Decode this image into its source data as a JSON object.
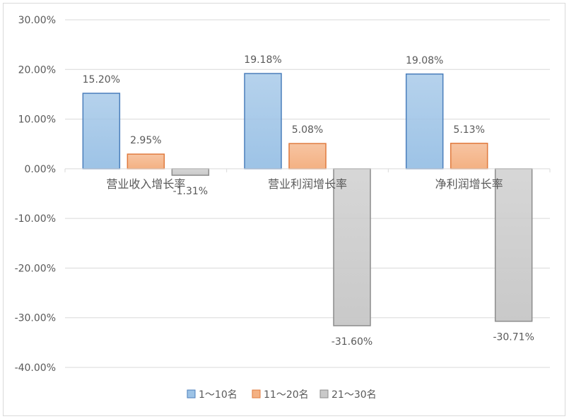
{
  "chart_data": {
    "type": "bar",
    "title": "",
    "xlabel": "",
    "ylabel": "",
    "categories": [
      "营业收入增长率",
      "营业利润增长率",
      "净利润增长率"
    ],
    "series": [
      {
        "name": "1～10名",
        "values": [
          15.2,
          19.18,
          19.08
        ],
        "labels": [
          "15.20%",
          "19.18%",
          "19.08%"
        ],
        "color": "#9dc3e6",
        "border": "#4a7ebb"
      },
      {
        "name": "11～20名",
        "values": [
          2.95,
          5.08,
          5.13
        ],
        "labels": [
          "2.95%",
          "5.08%",
          "5.13%"
        ],
        "color": "#f4b183",
        "border": "#e07a3e"
      },
      {
        "name": "21～30名",
        "values": [
          -1.31,
          -31.6,
          -30.71
        ],
        "labels": [
          "-1.31%",
          "-31.60%",
          "-30.71%"
        ],
        "color": "#c9c9c9",
        "border": "#8c8c8c"
      }
    ],
    "ylim": [
      -40,
      30
    ],
    "yticks": [
      30,
      20,
      10,
      0,
      -10,
      -20,
      -30,
      -40
    ],
    "ytick_labels": [
      "30.00%",
      "20.00%",
      "10.00%",
      "0.00%",
      "-10.00%",
      "-20.00%",
      "-30.00%",
      "-40.00%"
    ],
    "grid": true,
    "legend_position": "bottom"
  }
}
